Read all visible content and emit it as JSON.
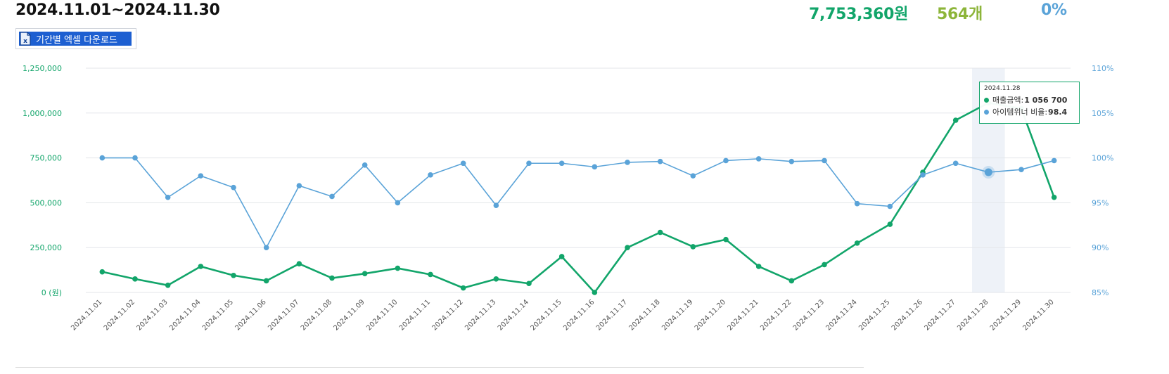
{
  "header": {
    "period": "2024.11.01~2024.11.30",
    "total_revenue": "7,753,360원",
    "total_count": "564개",
    "ratio": "0%",
    "colors": {
      "revenue": "#12a56a",
      "count": "#8db53a",
      "ratio": "#5aa3d8"
    }
  },
  "excel_button": {
    "label": "기간별 엑셀 다운로드",
    "icon": "excel-file-icon"
  },
  "tooltip": {
    "date": "2024.11.28",
    "revenue_label": "매출금액:",
    "revenue_value": "1 056 700",
    "ratio_label": "아이템위너 비율:",
    "ratio_value": "98.4"
  },
  "chart_data": {
    "type": "line",
    "categories": [
      "2024.11.01",
      "2024.11.02",
      "2024.11.03",
      "2024.11.04",
      "2024.11.05",
      "2024.11.06",
      "2024.11.07",
      "2024.11.08",
      "2024.11.09",
      "2024.11.10",
      "2024.11.11",
      "2024.11.12",
      "2024.11.13",
      "2024.11.14",
      "2024.11.15",
      "2024.11.16",
      "2024.11.17",
      "2024.11.18",
      "2024.11.19",
      "2024.11.20",
      "2024.11.21",
      "2024.11.22",
      "2024.11.23",
      "2024.11.24",
      "2024.11.25",
      "2024.11.26",
      "2024.11.27",
      "2024.11.28",
      "2024.11.29",
      "2024.11.30"
    ],
    "series": [
      {
        "name": "매출금액",
        "axis": "left",
        "color": "#12a56a",
        "values": [
          115000,
          75000,
          40000,
          145000,
          95000,
          65000,
          160000,
          80000,
          105000,
          135000,
          100000,
          25000,
          75000,
          50000,
          200000,
          0,
          250000,
          335000,
          255000,
          295000,
          145000,
          65000,
          155000,
          275000,
          380000,
          670000,
          960000,
          1056700,
          1025000,
          530000
        ]
      },
      {
        "name": "아이템위너 비율",
        "axis": "right",
        "color": "#5aa3d8",
        "values": [
          100,
          100,
          95.6,
          98,
          96.7,
          90,
          96.9,
          95.7,
          99.2,
          95,
          98.1,
          99.4,
          94.7,
          99.4,
          99.4,
          99,
          99.5,
          99.6,
          98,
          99.7,
          99.9,
          99.6,
          99.7,
          94.9,
          94.6,
          98.1,
          99.4,
          98.4,
          98.7,
          99.7
        ]
      }
    ],
    "y_left": {
      "ticks": [
        "1,250,000",
        "1,000,000",
        "750,000",
        "500,000",
        "250,000",
        "0 (원)"
      ],
      "ylim": [
        0,
        1250000
      ],
      "color": "#12a56a"
    },
    "y_right": {
      "ticks": [
        "110%",
        "105%",
        "100%",
        "95%",
        "90%",
        "85%"
      ],
      "ylim": [
        85,
        110
      ],
      "color": "#5aa3d8"
    },
    "highlight_category": "2024.11.28",
    "grid": true
  }
}
